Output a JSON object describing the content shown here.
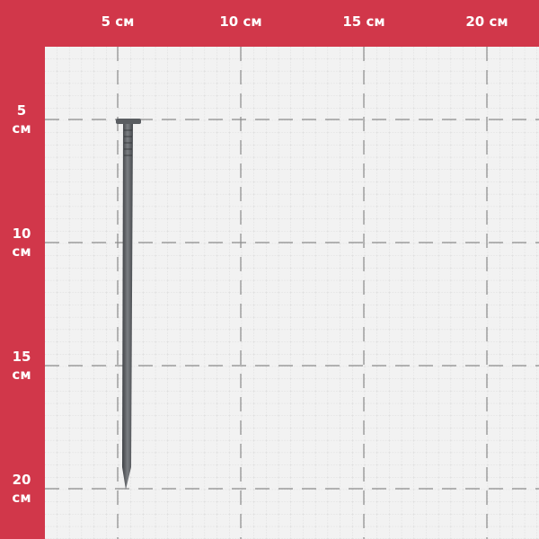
{
  "scale": {
    "unit": "см",
    "top_labels": [
      "5 см",
      "10 см",
      "15 см",
      "20 см"
    ],
    "left_labels": [
      {
        "number": "5",
        "unit": "см"
      },
      {
        "number": "10",
        "unit": "см"
      },
      {
        "number": "15",
        "unit": "см"
      },
      {
        "number": "20",
        "unit": "см"
      }
    ]
  },
  "colors": {
    "frame": "#d1374a",
    "paper": "#f1f1f1",
    "grid": "#c9c9c9",
    "nail": "#55585c"
  },
  "subject": "nail"
}
